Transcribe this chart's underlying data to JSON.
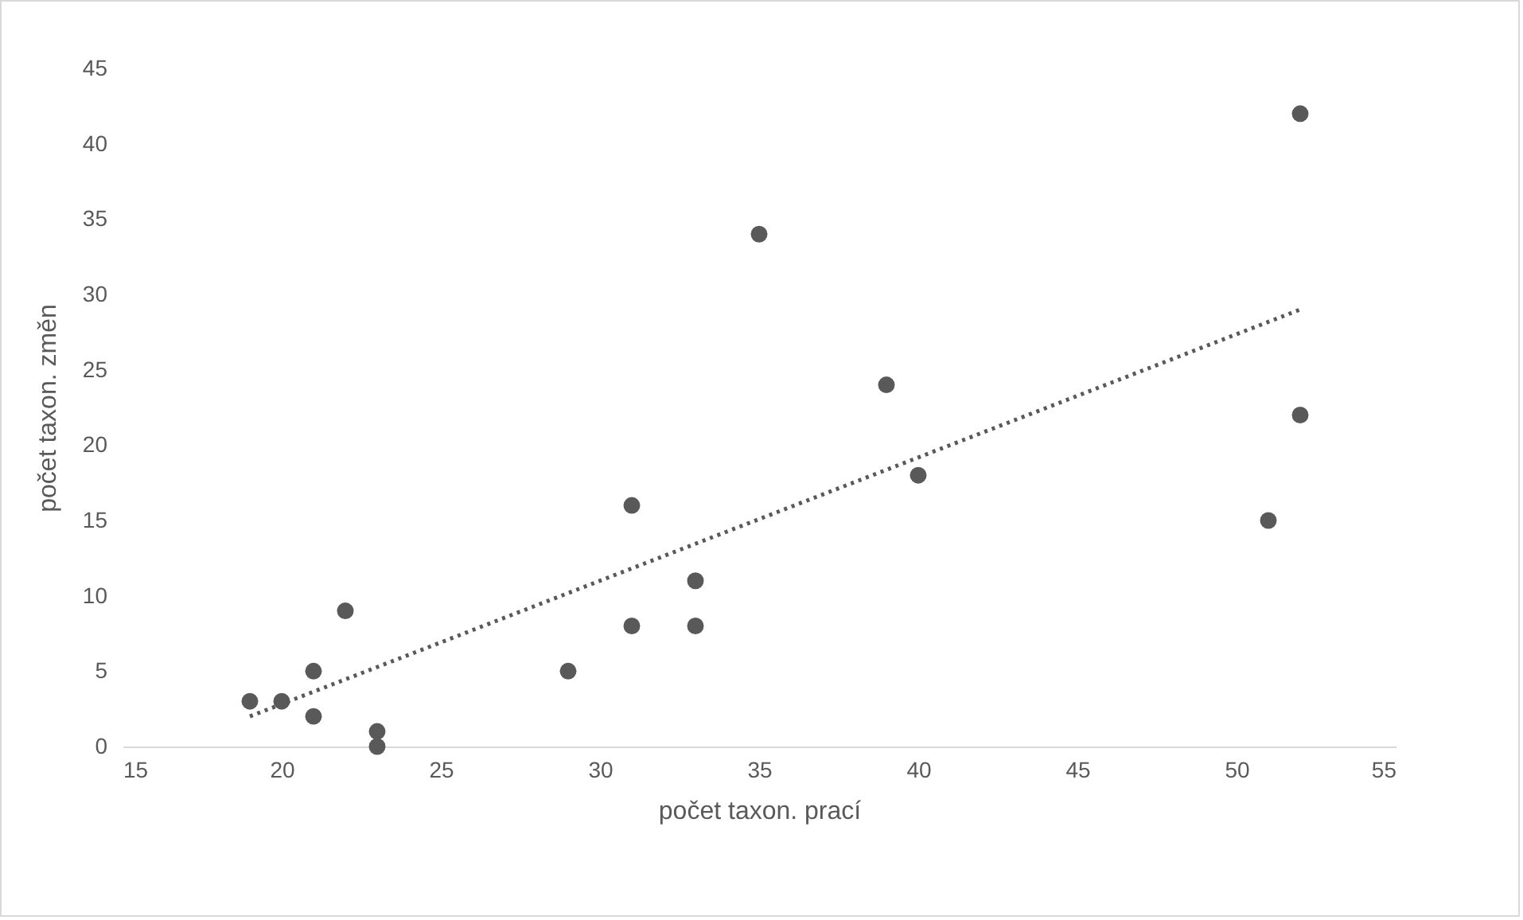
{
  "chart_data": {
    "type": "scatter",
    "xlabel": "počet taxon. prací",
    "ylabel": "počet taxon. změn",
    "xlim": [
      15,
      55
    ],
    "ylim": [
      0,
      45
    ],
    "xticks": [
      15,
      20,
      25,
      30,
      35,
      40,
      45,
      50,
      55
    ],
    "yticks": [
      0,
      5,
      10,
      15,
      20,
      25,
      30,
      35,
      40,
      45
    ],
    "grid": false,
    "series": [
      {
        "color": "#595959",
        "marker": "circle",
        "x": [
          19,
          20,
          21,
          21,
          22,
          23,
          23,
          29,
          31,
          31,
          33,
          33,
          35,
          39,
          40,
          51,
          52,
          52
        ],
        "values": [
          3,
          3,
          5,
          2,
          9,
          1,
          0,
          5,
          16,
          8,
          11,
          8,
          34,
          24,
          18,
          15,
          42,
          22
        ]
      },
      {
        "type": "line",
        "color": "#595959",
        "line_style": "dotted",
        "x": [
          19,
          52
        ],
        "values": [
          2,
          29
        ]
      }
    ]
  }
}
